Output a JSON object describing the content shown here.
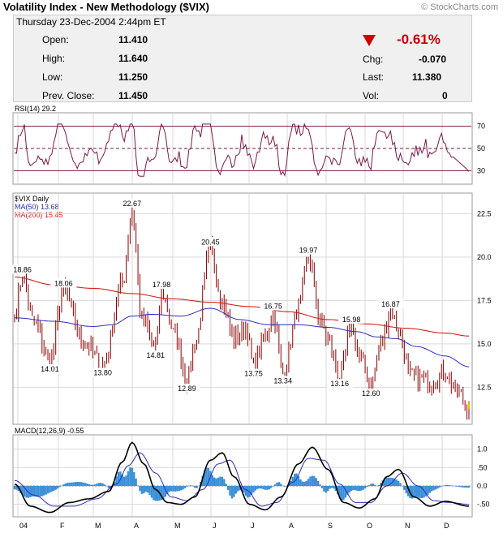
{
  "header": {
    "title": "Volatility Index - New Methodology ($VIX)",
    "brand": "© StockCharts.com",
    "date_line": "Thursday  23-Dec-2004  2:44pm ET"
  },
  "quote": {
    "open_label": "Open:",
    "open": "11.410",
    "high_label": "High:",
    "high": "11.640",
    "low_label": "Low:",
    "low": "11.250",
    "prev_label": "Prev. Close:",
    "prev": "11.450",
    "pct": "-0.61%",
    "chg_label": "Chg:",
    "chg": "-0.070",
    "last_label": "Last:",
    "last": "11.380",
    "vol_label": "Vol:",
    "vol": "0"
  },
  "colors": {
    "price": "#8b0000",
    "ma50": "#2d2dbf",
    "ma200": "#d42020",
    "rsi": "#7a1a4a",
    "macd_hist": "#3a8fd8",
    "macd_line": "#000000",
    "macd_signal": "#2d2dbf",
    "grid": "#d9d9d9",
    "down_arrow": "#cc0000"
  },
  "chart_data": [
    {
      "type": "line",
      "title": "RSI(14) 29.2",
      "ylim": [
        20,
        80
      ],
      "guides": [
        70,
        50,
        30
      ],
      "ytick_labels": [
        "70",
        "50",
        "30"
      ],
      "last_value": 29.2
    },
    {
      "type": "line",
      "title": "$VIX Daily",
      "legend": [
        "MA(50) 13.68",
        "MA(200) 15.45"
      ],
      "ylim": [
        10.6,
        23.5
      ],
      "ytick_labels": [
        "22.5",
        "20.0",
        "17.5",
        "15.0",
        "12.5"
      ],
      "yticks": [
        22.5,
        20.0,
        17.5,
        15.0,
        12.5
      ],
      "x_labels": [
        "04",
        "F",
        "M",
        "A",
        "M",
        "J",
        "J",
        "A",
        "S",
        "O",
        "N",
        "D"
      ],
      "price_anchors": [
        [
          0,
          16.6
        ],
        [
          4,
          18.86
        ],
        [
          10,
          16.2
        ],
        [
          18,
          14.01
        ],
        [
          25,
          18.06
        ],
        [
          35,
          15.2
        ],
        [
          45,
          13.8
        ],
        [
          55,
          18.5
        ],
        [
          60,
          22.67
        ],
        [
          65,
          16.5
        ],
        [
          72,
          14.81
        ],
        [
          75,
          17.98
        ],
        [
          82,
          15.5
        ],
        [
          88,
          12.89
        ],
        [
          92,
          15.0
        ],
        [
          100,
          20.45
        ],
        [
          106,
          17.5
        ],
        [
          112,
          15.3
        ],
        [
          118,
          16.0
        ],
        [
          122,
          13.75
        ],
        [
          128,
          15.4
        ],
        [
          132,
          16.75
        ],
        [
          137,
          13.34
        ],
        [
          145,
          17.0
        ],
        [
          150,
          19.97
        ],
        [
          156,
          16.5
        ],
        [
          160,
          15.2
        ],
        [
          166,
          13.16
        ],
        [
          172,
          15.98
        ],
        [
          177,
          14.0
        ],
        [
          182,
          12.6
        ],
        [
          187,
          15.0
        ],
        [
          192,
          16.87
        ],
        [
          196,
          15.8
        ],
        [
          202,
          13.2
        ],
        [
          208,
          13.0
        ],
        [
          214,
          12.8
        ],
        [
          220,
          13.4
        ],
        [
          226,
          12.2
        ],
        [
          232,
          11.38
        ]
      ],
      "ma200": [
        [
          0,
          18.85
        ],
        [
          20,
          18.4
        ],
        [
          40,
          18.2
        ],
        [
          60,
          17.9
        ],
        [
          80,
          17.6
        ],
        [
          100,
          17.4
        ],
        [
          120,
          17.15
        ],
        [
          140,
          16.85
        ],
        [
          160,
          16.4
        ],
        [
          180,
          16.15
        ],
        [
          200,
          15.9
        ],
        [
          220,
          15.62
        ],
        [
          232,
          15.45
        ]
      ],
      "ma50": [
        [
          0,
          16.5
        ],
        [
          20,
          16.3
        ],
        [
          40,
          16.0
        ],
        [
          50,
          16.1
        ],
        [
          60,
          16.6
        ],
        [
          70,
          16.7
        ],
        [
          85,
          16.6
        ],
        [
          100,
          17.05
        ],
        [
          115,
          16.4
        ],
        [
          130,
          16.1
        ],
        [
          145,
          16.1
        ],
        [
          160,
          15.95
        ],
        [
          175,
          15.7
        ],
        [
          185,
          15.4
        ],
        [
          195,
          15.3
        ],
        [
          205,
          14.85
        ],
        [
          220,
          14.3
        ],
        [
          232,
          13.68
        ]
      ],
      "annotations": [
        {
          "label": "18.86",
          "i": 4,
          "v": 18.86,
          "pos": "above"
        },
        {
          "label": "18.06",
          "i": 25,
          "v": 18.06,
          "pos": "above"
        },
        {
          "label": "14.01",
          "i": 18,
          "v": 14.01,
          "pos": "below"
        },
        {
          "label": "13.80",
          "i": 45,
          "v": 13.8,
          "pos": "below"
        },
        {
          "label": "22.67",
          "i": 60,
          "v": 22.67,
          "pos": "above"
        },
        {
          "label": "17.98",
          "i": 75,
          "v": 17.98,
          "pos": "above"
        },
        {
          "label": "14.81",
          "i": 72,
          "v": 14.81,
          "pos": "below"
        },
        {
          "label": "12.89",
          "i": 88,
          "v": 12.89,
          "pos": "below"
        },
        {
          "label": "20.45",
          "i": 100,
          "v": 20.45,
          "pos": "above"
        },
        {
          "label": "16.75",
          "i": 132,
          "v": 16.75,
          "pos": "above"
        },
        {
          "label": "13.75",
          "i": 122,
          "v": 13.75,
          "pos": "below"
        },
        {
          "label": "13.34",
          "i": 137,
          "v": 13.34,
          "pos": "below"
        },
        {
          "label": "19.97",
          "i": 150,
          "v": 19.97,
          "pos": "above"
        },
        {
          "label": "15.98",
          "i": 172,
          "v": 15.98,
          "pos": "above"
        },
        {
          "label": "13.16",
          "i": 166,
          "v": 13.16,
          "pos": "below"
        },
        {
          "label": "12.60",
          "i": 182,
          "v": 12.6,
          "pos": "below"
        },
        {
          "label": "16.87",
          "i": 192,
          "v": 16.87,
          "pos": "above"
        }
      ]
    },
    {
      "type": "area",
      "title": "MACD(12,26,9) -0.55",
      "ylim": [
        -0.75,
        1.3
      ],
      "ytick_labels": [
        "1.0",
        ".50",
        "0.0",
        "-.50"
      ],
      "yticks": [
        1.0,
        0.5,
        0.0,
        -0.5
      ],
      "macd_anchors": [
        [
          0,
          0.05
        ],
        [
          8,
          -0.55
        ],
        [
          18,
          -0.72
        ],
        [
          28,
          -0.45
        ],
        [
          38,
          -0.35
        ],
        [
          48,
          -0.15
        ],
        [
          55,
          0.65
        ],
        [
          60,
          1.18
        ],
        [
          66,
          0.6
        ],
        [
          72,
          -0.1
        ],
        [
          78,
          -0.45
        ],
        [
          85,
          -0.5
        ],
        [
          92,
          -0.3
        ],
        [
          100,
          0.7
        ],
        [
          106,
          0.9
        ],
        [
          112,
          0.25
        ],
        [
          120,
          -0.5
        ],
        [
          128,
          -0.65
        ],
        [
          136,
          -0.3
        ],
        [
          145,
          0.6
        ],
        [
          152,
          1.05
        ],
        [
          160,
          0.45
        ],
        [
          168,
          -0.45
        ],
        [
          176,
          -0.6
        ],
        [
          184,
          -0.35
        ],
        [
          190,
          0.25
        ],
        [
          196,
          0.45
        ],
        [
          204,
          -0.3
        ],
        [
          212,
          -0.55
        ],
        [
          220,
          -0.42
        ],
        [
          232,
          -0.55
        ]
      ],
      "signal_anchors": [
        [
          0,
          0.15
        ],
        [
          10,
          -0.25
        ],
        [
          20,
          -0.55
        ],
        [
          30,
          -0.55
        ],
        [
          42,
          -0.35
        ],
        [
          52,
          0.05
        ],
        [
          58,
          0.55
        ],
        [
          64,
          0.9
        ],
        [
          72,
          0.35
        ],
        [
          80,
          -0.3
        ],
        [
          88,
          -0.4
        ],
        [
          96,
          -0.1
        ],
        [
          104,
          0.6
        ],
        [
          110,
          0.7
        ],
        [
          118,
          -0.1
        ],
        [
          126,
          -0.55
        ],
        [
          134,
          -0.45
        ],
        [
          142,
          0.1
        ],
        [
          150,
          0.75
        ],
        [
          158,
          0.7
        ],
        [
          166,
          0.05
        ],
        [
          174,
          -0.45
        ],
        [
          182,
          -0.45
        ],
        [
          190,
          0.0
        ],
        [
          198,
          0.35
        ],
        [
          206,
          0.0
        ],
        [
          214,
          -0.4
        ],
        [
          222,
          -0.45
        ],
        [
          232,
          -0.5
        ]
      ]
    }
  ]
}
